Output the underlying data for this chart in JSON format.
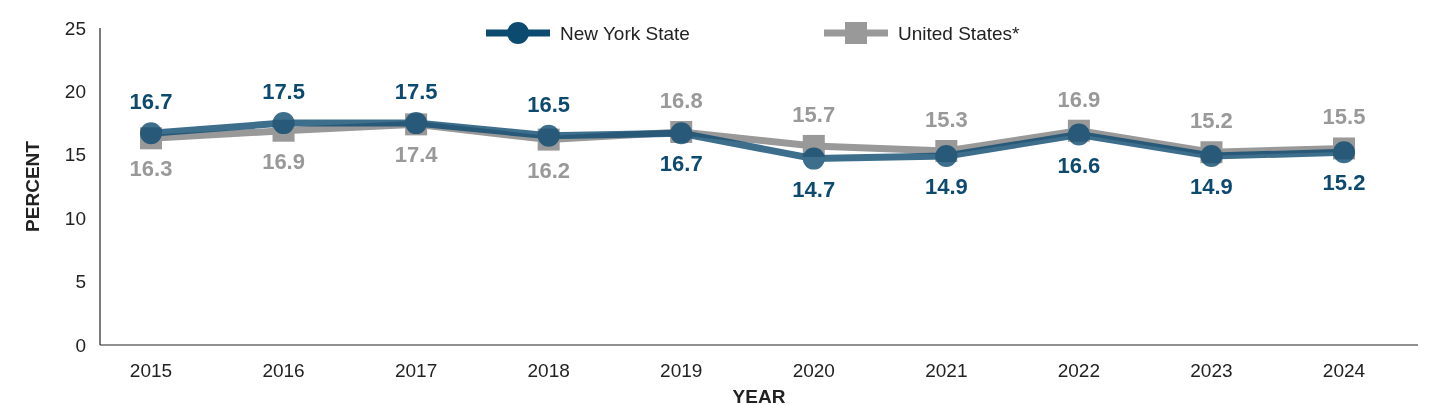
{
  "chart_data": {
    "type": "line",
    "xlabel": "YEAR",
    "ylabel": "PERCENT",
    "categories": [
      "2015",
      "2016",
      "2017",
      "2018",
      "2019",
      "2020",
      "2021",
      "2022",
      "2023",
      "2024"
    ],
    "series": [
      {
        "name": "New York State",
        "color": "#0d4a70",
        "marker": "circle",
        "values": [
          16.7,
          17.5,
          17.5,
          16.5,
          16.7,
          14.7,
          14.9,
          16.6,
          14.9,
          15.2
        ]
      },
      {
        "name": "United States*",
        "color": "#999999",
        "marker": "square",
        "values": [
          16.3,
          16.9,
          17.4,
          16.2,
          16.8,
          15.7,
          15.3,
          16.9,
          15.2,
          15.5
        ]
      }
    ],
    "ylim": [
      0,
      25
    ],
    "yticks": [
      0,
      5,
      10,
      15,
      20,
      25
    ],
    "data_labels": true,
    "legend": "top",
    "grid": false,
    "line_style": "solid"
  }
}
